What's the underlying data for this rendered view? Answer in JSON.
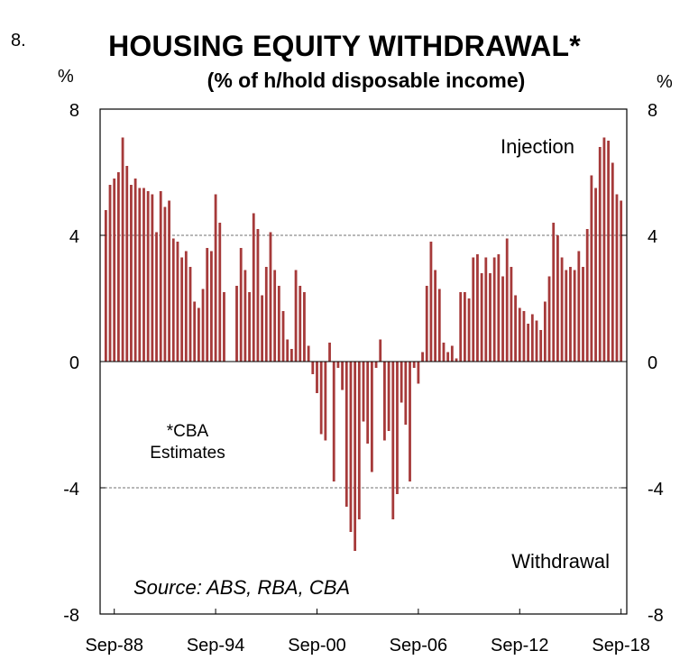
{
  "chart_number": "8.",
  "chart_data": {
    "type": "bar",
    "title": "HOUSING EQUITY WITHDRAWAL*",
    "subtitle": "(% of h/hold disposable income)",
    "y_unit_left": "%",
    "y_unit_right": "%",
    "ylim": [
      -8,
      8
    ],
    "yticks": [
      "8",
      "4",
      "0",
      "-4",
      "-8"
    ],
    "yticks_right": [
      "8",
      "4",
      "0",
      "-4",
      "-8"
    ],
    "xtick_labels": [
      "Sep-88",
      "Sep-94",
      "Sep-00",
      "Sep-06",
      "Sep-12",
      "Sep-18"
    ],
    "frequency": "quarterly",
    "first_period": "Mar-88",
    "gridlines": [
      4,
      -4
    ],
    "bar_color": "#A63A3A",
    "annotations": {
      "injection": "Injection",
      "withdrawal": "Withdrawal",
      "note": "*CBA\nEstimates",
      "source": "Source: ABS, RBA, CBA"
    },
    "values": [
      4.8,
      5.6,
      5.8,
      6.0,
      7.1,
      6.2,
      5.6,
      5.8,
      5.5,
      5.5,
      5.4,
      5.3,
      4.1,
      5.4,
      4.9,
      5.1,
      3.9,
      3.8,
      3.3,
      3.5,
      3.0,
      1.9,
      1.7,
      2.3,
      3.6,
      3.5,
      5.3,
      4.4,
      2.2,
      null,
      null,
      2.4,
      3.6,
      2.9,
      2.2,
      4.7,
      4.2,
      2.1,
      3.0,
      4.1,
      2.9,
      2.4,
      1.6,
      0.7,
      0.4,
      2.9,
      2.4,
      2.2,
      0.5,
      -0.4,
      -1.0,
      -2.3,
      -2.5,
      0.6,
      -3.8,
      -0.2,
      -0.9,
      -4.6,
      -5.4,
      -6.0,
      -5.0,
      -1.9,
      -2.6,
      -3.5,
      -0.2,
      0.7,
      -2.5,
      -2.2,
      -5.0,
      -4.2,
      -1.3,
      -2.0,
      -3.8,
      -0.2,
      -0.7,
      0.3,
      2.4,
      3.8,
      2.9,
      2.3,
      0.6,
      0.3,
      0.5,
      0.1,
      2.2,
      2.2,
      2.0,
      3.3,
      3.4,
      2.8,
      3.3,
      2.8,
      3.3,
      3.4,
      2.7,
      3.9,
      3.0,
      2.1,
      1.7,
      1.6,
      1.2,
      1.5,
      1.3,
      1.0,
      1.9,
      2.7,
      4.4,
      4.0,
      3.3,
      2.9,
      3.0,
      2.9,
      3.5,
      3.0,
      4.2,
      5.9,
      5.5,
      6.8,
      7.1,
      7.0,
      6.3,
      5.3,
      5.1
    ]
  }
}
